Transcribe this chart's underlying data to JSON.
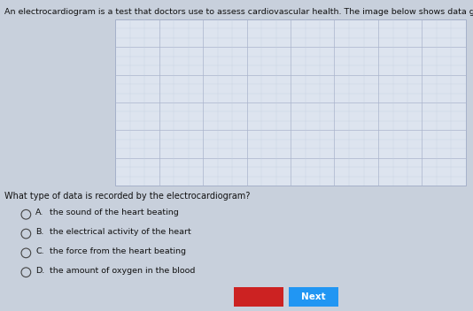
{
  "bg_color": "#c8d0dc",
  "ecg_panel_bg": "#dde4ef",
  "grid_color_major": "#aab4cc",
  "grid_color_minor": "#c4cede",
  "ecg_color": "#cc1515",
  "title_text": "An electrocardiogram is a test that doctors use to assess cardiovascular health. The image below shows data given by an electrocardiogram.",
  "question_text": "What type of data is recorded by the electrocardiogram?",
  "options": [
    {
      "label": "A.",
      "text": "the sound of the heart beating"
    },
    {
      "label": "B.",
      "text": "the electrical activity of the heart"
    },
    {
      "label": "C.",
      "text": "the force from the heart beating"
    },
    {
      "label": "D.",
      "text": "the amount of oxygen in the blood"
    }
  ],
  "title_fontsize": 6.8,
  "question_fontsize": 7.0,
  "option_fontsize": 6.8,
  "next_btn_color": "#2196F3",
  "back_btn_color": "#cc2222"
}
